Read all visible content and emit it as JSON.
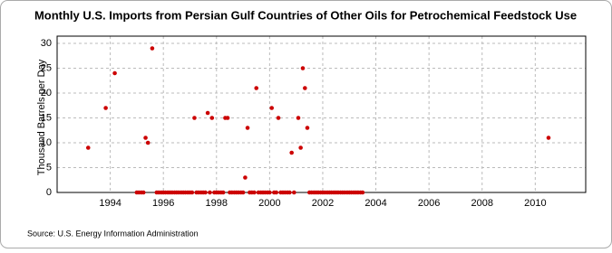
{
  "chart_data": {
    "type": "scatter",
    "title": "Monthly U.S. Imports from Persian Gulf Countries of Other Oils for Petrochemical Feedstock Use",
    "y_label": "Thousand Barrels per Day",
    "source": "Source: U.S. Energy Information Administration",
    "xlim": [
      1992,
      2011.9
    ],
    "xticks": [
      1994,
      1996,
      1998,
      2000,
      2002,
      2004,
      2006,
      2008,
      2010
    ],
    "ylim": [
      0,
      30
    ],
    "yticks": [
      0,
      5,
      10,
      15,
      20,
      25,
      30
    ],
    "grid": true,
    "series": [
      {
        "color": "#cc0000",
        "x": [
          1993.17,
          1993.83,
          1994.17,
          1995.0,
          1995.08,
          1995.17,
          1995.25,
          1995.33,
          1995.42,
          1995.58,
          1995.75,
          1995.83,
          1995.92,
          1996.0,
          1996.08,
          1996.17,
          1996.25,
          1996.33,
          1996.42,
          1996.5,
          1996.58,
          1996.67,
          1996.75,
          1996.83,
          1996.92,
          1997.0,
          1997.08,
          1997.17,
          1997.25,
          1997.33,
          1997.42,
          1997.5,
          1997.58,
          1997.67,
          1997.75,
          1997.83,
          1997.92,
          1998.0,
          1998.08,
          1998.17,
          1998.25,
          1998.33,
          1998.42,
          1998.5,
          1998.58,
          1998.67,
          1998.75,
          1998.83,
          1998.92,
          1999.0,
          1999.08,
          1999.17,
          1999.25,
          1999.33,
          1999.42,
          1999.5,
          1999.58,
          1999.67,
          1999.75,
          1999.83,
          1999.92,
          2000.0,
          2000.08,
          2000.17,
          2000.25,
          2000.33,
          2000.42,
          2000.5,
          2000.58,
          2000.67,
          2000.75,
          2000.83,
          2000.92,
          2001.08,
          2001.17,
          2001.25,
          2001.33,
          2001.42,
          2001.5,
          2001.58,
          2001.67,
          2001.75,
          2001.83,
          2001.92,
          2002.0,
          2002.08,
          2002.17,
          2002.25,
          2002.33,
          2002.42,
          2002.5,
          2002.58,
          2002.67,
          2002.75,
          2002.83,
          2002.92,
          2003.0,
          2003.08,
          2003.17,
          2003.25,
          2003.33,
          2003.42,
          2003.5,
          2010.5
        ],
        "values": [
          9,
          17,
          24,
          0,
          0,
          0,
          0,
          11,
          10,
          29,
          0,
          0,
          0,
          0,
          0,
          0,
          0,
          0,
          0,
          0,
          0,
          0,
          0,
          0,
          0,
          0,
          0,
          15,
          0,
          0,
          0,
          0,
          0,
          16,
          0,
          15,
          0,
          0,
          0,
          0,
          0,
          15,
          15,
          0,
          0,
          0,
          0,
          0,
          0,
          0,
          3,
          13,
          0,
          0,
          0,
          21,
          0,
          0,
          0,
          0,
          0,
          0,
          17,
          0,
          0,
          15,
          0,
          0,
          0,
          0,
          0,
          8,
          0,
          15,
          9,
          25,
          21,
          13,
          0,
          0,
          0,
          0,
          0,
          0,
          0,
          0,
          0,
          0,
          0,
          0,
          0,
          0,
          0,
          0,
          0,
          0,
          0,
          0,
          0,
          0,
          0,
          0,
          0,
          11
        ]
      }
    ]
  }
}
